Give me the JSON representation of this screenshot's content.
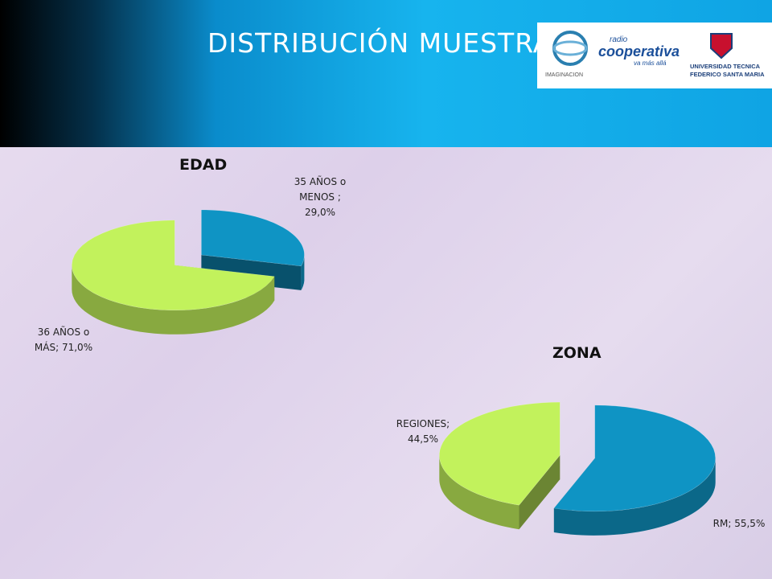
{
  "header": {
    "title": "DISTRIBUCIÓN MUESTRA",
    "logos": [
      "IMAGINACION",
      "radio",
      "cooperativa",
      "va más allá",
      "UNIVERSIDAD TECNICA",
      "FEDERICO SANTA MARIA"
    ]
  },
  "chart_data": [
    {
      "type": "pie",
      "title": "EDAD",
      "categories": [
        "35 AÑOS o MENOS ;",
        "36 AÑOS o MÁS;"
      ],
      "values": [
        29.0,
        71.0
      ],
      "value_labels": [
        "29,0%",
        "71,0%"
      ],
      "colors": [
        "#0f94c4",
        "#c2f25c"
      ]
    },
    {
      "type": "pie",
      "title": "ZONA",
      "categories": [
        "RM;",
        "REGIONES;"
      ],
      "values": [
        55.5,
        44.5
      ],
      "value_labels": [
        "55,5%",
        "44,5%"
      ],
      "colors": [
        "#0f94c4",
        "#c2f25c"
      ]
    }
  ]
}
